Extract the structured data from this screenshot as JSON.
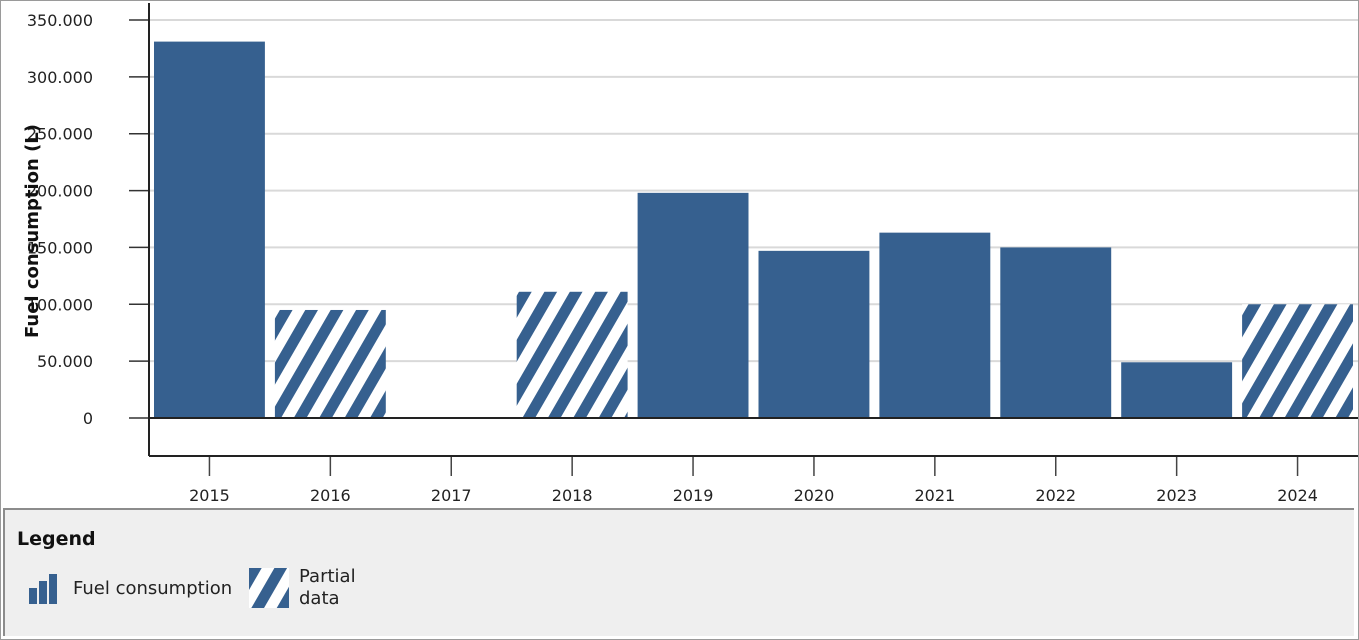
{
  "chart_data": {
    "type": "bar",
    "xlabel": "",
    "ylabel": "Fuel consumption (L)",
    "ylim": [
      0,
      350000
    ],
    "y_ticks": [
      {
        "value": 0,
        "label": "0"
      },
      {
        "value": 50000,
        "label": "50.000"
      },
      {
        "value": 100000,
        "label": "100.000"
      },
      {
        "value": 150000,
        "label": "150.000"
      },
      {
        "value": 200000,
        "label": "200.000"
      },
      {
        "value": 250000,
        "label": "250.000"
      },
      {
        "value": 300000,
        "label": "300.000"
      },
      {
        "value": 350000,
        "label": "350.000"
      }
    ],
    "grid": true,
    "categories": [
      "2015",
      "2016",
      "2017",
      "2018",
      "2019",
      "2020",
      "2021",
      "2022",
      "2023",
      "2024"
    ],
    "values": [
      331000,
      95000,
      0,
      111000,
      198000,
      147000,
      163000,
      150000,
      49000,
      100000
    ],
    "partial": [
      false,
      true,
      false,
      true,
      false,
      false,
      false,
      false,
      false,
      true
    ],
    "bar_color": "#36608f"
  },
  "legend": {
    "title": "Legend",
    "placement": "bottom",
    "items": [
      {
        "label": "Fuel consumption",
        "icon": "bar-chart-icon"
      },
      {
        "label": "Partial data",
        "icon": "hatched-pattern-icon"
      }
    ]
  }
}
